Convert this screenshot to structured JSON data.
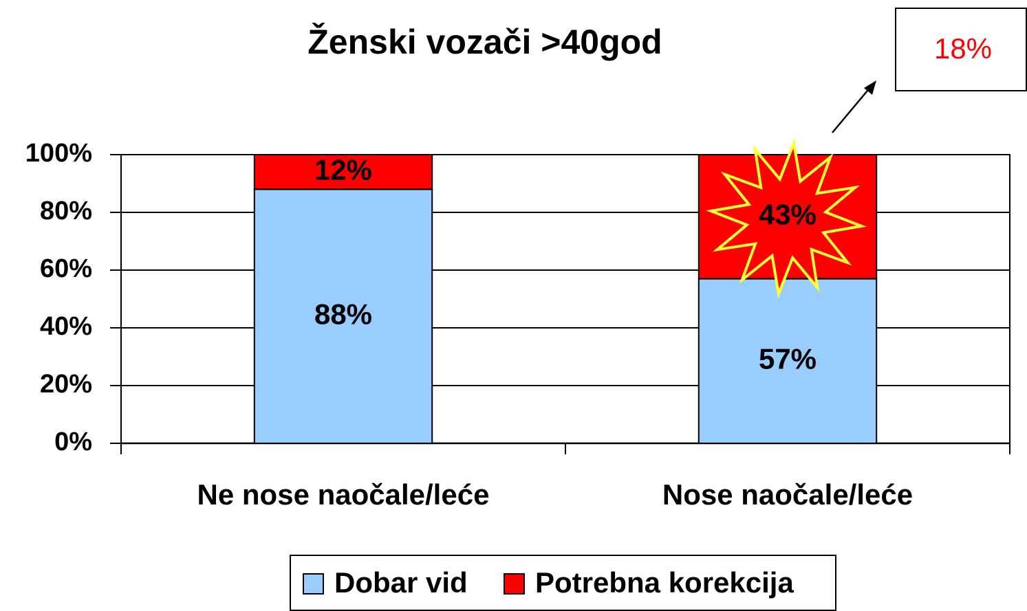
{
  "chart_data": {
    "type": "stacked_bar",
    "title": "Ženski vozači >40god",
    "categories": [
      "Ne nose naočale/leće",
      "Nose naočale/leće"
    ],
    "series": [
      {
        "name": "Dobar vid",
        "color": "#99ccff",
        "values": [
          88,
          57
        ],
        "value_labels": [
          "88%",
          "57%"
        ]
      },
      {
        "name": "Potrebna korekcija",
        "color": "#ff0000",
        "values": [
          12,
          43
        ],
        "value_labels": [
          "12%",
          "43%"
        ]
      }
    ],
    "ylim": [
      0,
      100
    ],
    "yticks": [
      {
        "value": 0,
        "label": "0%"
      },
      {
        "value": 20,
        "label": "20%"
      },
      {
        "value": 40,
        "label": "40%"
      },
      {
        "value": 60,
        "label": "60%"
      },
      {
        "value": 80,
        "label": "80%"
      },
      {
        "value": 100,
        "label": "100%"
      }
    ],
    "grid": true,
    "legend": "bottom",
    "annotations": [
      "18%"
    ]
  }
}
